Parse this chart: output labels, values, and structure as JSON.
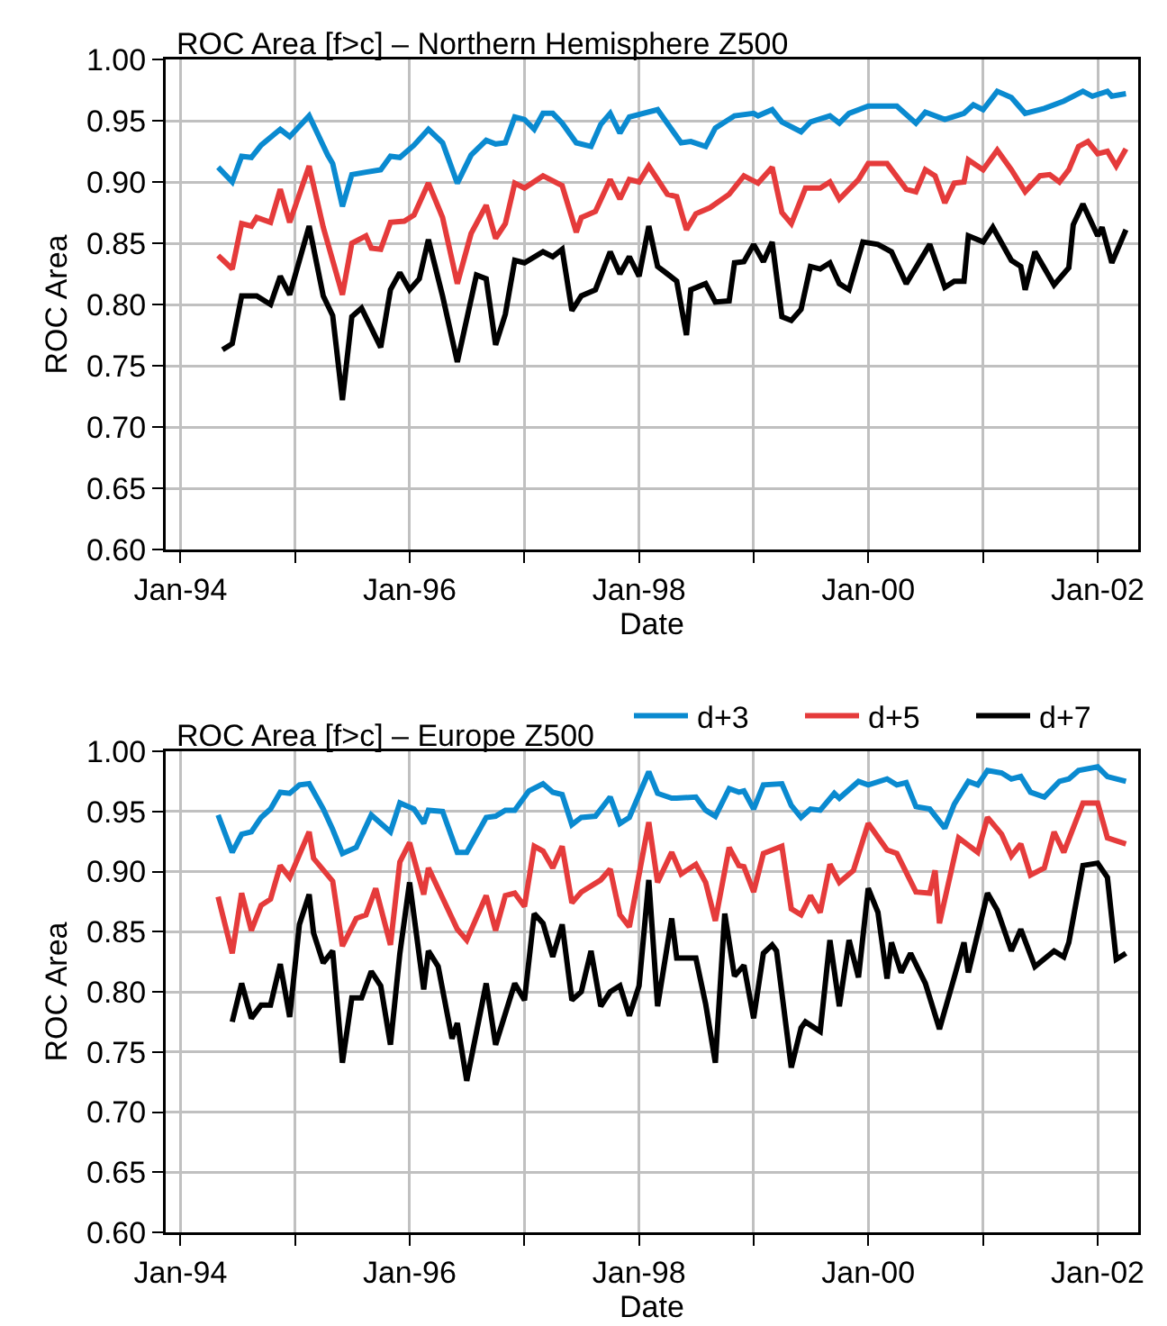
{
  "chart_data": [
    {
      "type": "line",
      "title": "ROC Area [f>c] – Northern Hemisphere Z500",
      "xlabel": "Date",
      "ylabel": "ROC Area",
      "xlim": [
        "1993-11-15",
        "2002-05-10"
      ],
      "ylim": [
        0.6,
        1.0
      ],
      "xticks": [
        {
          "value": "1994-01-01",
          "label": "Jan-94"
        },
        {
          "value": "1995-01-01",
          "label": null
        },
        {
          "value": "1996-01-01",
          "label": "Jan-96"
        },
        {
          "value": "1997-01-01",
          "label": null
        },
        {
          "value": "1998-01-01",
          "label": "Jan-98"
        },
        {
          "value": "1999-01-01",
          "label": null
        },
        {
          "value": "2000-01-01",
          "label": "Jan-00"
        },
        {
          "value": "2001-01-01",
          "label": null
        },
        {
          "value": "2002-01-01",
          "label": "Jan-02"
        }
      ],
      "yticks": [
        {
          "value": 0.6,
          "label": "0.60"
        },
        {
          "value": 0.65,
          "label": "0.65"
        },
        {
          "value": 0.7,
          "label": "0.70"
        },
        {
          "value": 0.75,
          "label": "0.75"
        },
        {
          "value": 0.8,
          "label": "0.80"
        },
        {
          "value": 0.85,
          "label": "0.85"
        },
        {
          "value": 0.9,
          "label": "0.90"
        },
        {
          "value": 0.95,
          "label": "0.95"
        },
        {
          "value": 1.0,
          "label": "1.00"
        }
      ],
      "grid": true,
      "legend": false,
      "marker": "none",
      "line_style": "solid",
      "series": [
        {
          "color": "#0a8ad0",
          "x": [
            "1994-05-01",
            "1994-06-15",
            "1994-07-15",
            "1994-08-15",
            "1994-09-15",
            "1994-11-15",
            "1994-12-15",
            "1995-02-15",
            "1995-04-15",
            "1995-05-01",
            "1995-06-01",
            "1995-07-01",
            "1995-08-15",
            "1995-10-01",
            "1995-11-01",
            "1995-12-01",
            "1996-01-15",
            "1996-03-01",
            "1996-04-15",
            "1996-06-01",
            "1996-07-15",
            "1996-09-01",
            "1996-10-01",
            "1996-11-01",
            "1996-12-01",
            "1997-01-01",
            "1997-02-01",
            "1997-03-01",
            "1997-04-01",
            "1997-05-01",
            "1997-06-15",
            "1997-08-01",
            "1997-09-01",
            "1997-10-01",
            "1997-11-01",
            "1997-12-01",
            "1998-03-01",
            "1998-05-15",
            "1998-06-15",
            "1998-08-01",
            "1998-09-01",
            "1998-11-01",
            "1999-01-01",
            "1999-01-15",
            "1999-03-01",
            "1999-04-01",
            "1999-06-01",
            "1999-07-01",
            "1999-09-01",
            "1999-10-01",
            "1999-11-01",
            "2000-01-01",
            "2000-02-15",
            "2000-04-01",
            "2000-06-01",
            "2000-07-01",
            "2000-09-01",
            "2000-11-01",
            "2000-12-01",
            "2001-01-01",
            "2001-02-15",
            "2001-04-01",
            "2001-05-15",
            "2001-07-15",
            "2001-09-15",
            "2001-11-15",
            "2001-12-15",
            "2002-02-01",
            "2002-02-15",
            "2002-04-01"
          ],
          "values": [
            0.912,
            0.9,
            0.921,
            0.92,
            0.93,
            0.943,
            0.937,
            0.954,
            0.922,
            0.915,
            0.88,
            0.906,
            0.908,
            0.91,
            0.921,
            0.92,
            0.93,
            0.943,
            0.932,
            0.899,
            0.922,
            0.934,
            0.931,
            0.932,
            0.953,
            0.951,
            0.943,
            0.956,
            0.956,
            0.948,
            0.932,
            0.929,
            0.947,
            0.956,
            0.94,
            0.953,
            0.959,
            0.932,
            0.933,
            0.929,
            0.944,
            0.954,
            0.956,
            0.954,
            0.959,
            0.949,
            0.941,
            0.949,
            0.954,
            0.948,
            0.956,
            0.962,
            0.962,
            0.962,
            0.948,
            0.957,
            0.951,
            0.956,
            0.963,
            0.959,
            0.974,
            0.969,
            0.956,
            0.96,
            0.966,
            0.974,
            0.97,
            0.974,
            0.97,
            0.972
          ]
        },
        {
          "color": "#e53b3b",
          "x": [
            "1994-05-01",
            "1994-06-15",
            "1994-07-15",
            "1994-08-15",
            "1994-09-01",
            "1994-10-15",
            "1994-11-15",
            "1994-12-15",
            "1995-02-15",
            "1995-04-01",
            "1995-06-01",
            "1995-07-01",
            "1995-08-15",
            "1995-09-01",
            "1995-10-01",
            "1995-11-01",
            "1995-12-15",
            "1996-01-15",
            "1996-03-01",
            "1996-04-15",
            "1996-06-01",
            "1996-07-15",
            "1996-09-01",
            "1996-10-01",
            "1996-11-01",
            "1996-12-01",
            "1997-01-01",
            "1997-03-01",
            "1997-05-01",
            "1997-06-15",
            "1997-07-01",
            "1997-08-15",
            "1997-10-01",
            "1997-11-01",
            "1997-12-01",
            "1998-01-01",
            "1998-02-01",
            "1998-04-01",
            "1998-05-01",
            "1998-06-01",
            "1998-07-01",
            "1998-08-15",
            "1998-10-15",
            "1998-12-01",
            "1999-01-15",
            "1999-03-01",
            "1999-04-01",
            "1999-05-01",
            "1999-06-15",
            "1999-08-01",
            "1999-09-01",
            "1999-10-01",
            "1999-12-01",
            "2000-01-01",
            "2000-03-01",
            "2000-05-01",
            "2000-06-01",
            "2000-07-01",
            "2000-08-01",
            "2000-09-01",
            "2000-10-01",
            "2000-11-01",
            "2000-11-15",
            "2001-01-01",
            "2001-02-15",
            "2001-04-01",
            "2001-05-15",
            "2001-07-01",
            "2001-08-01",
            "2001-09-01",
            "2001-10-01",
            "2001-11-01",
            "2001-12-01",
            "2002-01-01",
            "2002-02-01",
            "2002-03-01",
            "2002-04-01"
          ],
          "values": [
            0.84,
            0.829,
            0.866,
            0.864,
            0.871,
            0.867,
            0.894,
            0.867,
            0.913,
            0.863,
            0.808,
            0.85,
            0.856,
            0.846,
            0.845,
            0.867,
            0.868,
            0.873,
            0.899,
            0.871,
            0.817,
            0.858,
            0.881,
            0.854,
            0.866,
            0.899,
            0.895,
            0.905,
            0.897,
            0.859,
            0.871,
            0.876,
            0.902,
            0.886,
            0.902,
            0.9,
            0.913,
            0.89,
            0.888,
            0.861,
            0.874,
            0.879,
            0.89,
            0.905,
            0.899,
            0.912,
            0.875,
            0.866,
            0.895,
            0.895,
            0.9,
            0.886,
            0.902,
            0.915,
            0.915,
            0.894,
            0.892,
            0.91,
            0.905,
            0.883,
            0.899,
            0.9,
            0.918,
            0.91,
            0.926,
            0.91,
            0.892,
            0.905,
            0.906,
            0.9,
            0.91,
            0.929,
            0.933,
            0.923,
            0.925,
            0.913,
            0.927
          ]
        },
        {
          "color": "#000000",
          "x": [
            "1994-05-15",
            "1994-06-15",
            "1994-07-15",
            "1994-09-01",
            "1994-10-15",
            "1994-11-15",
            "1994-12-15",
            "1995-02-15",
            "1995-04-01",
            "1995-05-01",
            "1995-06-01",
            "1995-07-01",
            "1995-08-01",
            "1995-10-01",
            "1995-11-01",
            "1995-12-01",
            "1996-01-01",
            "1996-02-01",
            "1996-03-01",
            "1996-04-15",
            "1996-06-01",
            "1996-08-01",
            "1996-09-01",
            "1996-10-01",
            "1996-11-01",
            "1996-12-01",
            "1997-01-01",
            "1997-03-01",
            "1997-04-01",
            "1997-05-01",
            "1997-06-01",
            "1997-07-01",
            "1997-08-15",
            "1997-10-01",
            "1997-11-01",
            "1997-12-01",
            "1998-01-01",
            "1998-02-01",
            "1998-03-01",
            "1998-04-01",
            "1998-05-01",
            "1998-06-01",
            "1998-06-15",
            "1998-08-01",
            "1998-09-01",
            "1998-10-15",
            "1998-11-01",
            "1998-12-01",
            "1999-01-01",
            "1999-02-01",
            "1999-03-01",
            "1999-04-01",
            "1999-05-01",
            "1999-06-01",
            "1999-07-01",
            "1999-08-01",
            "1999-09-01",
            "1999-10-01",
            "1999-11-01",
            "1999-12-15",
            "2000-02-01",
            "2000-03-15",
            "2000-05-01",
            "2000-07-15",
            "2000-09-01",
            "2000-10-01",
            "2000-11-01",
            "2000-11-15",
            "2001-01-01",
            "2001-02-01",
            "2001-04-01",
            "2001-05-01",
            "2001-05-15",
            "2001-06-15",
            "2001-08-15",
            "2001-10-01",
            "2001-10-15",
            "2001-11-15",
            "2002-01-01",
            "2002-01-15",
            "2002-02-15",
            "2002-04-01"
          ],
          "values": [
            0.763,
            0.768,
            0.807,
            0.807,
            0.8,
            0.823,
            0.808,
            0.864,
            0.807,
            0.791,
            0.722,
            0.79,
            0.797,
            0.765,
            0.812,
            0.826,
            0.812,
            0.821,
            0.853,
            0.807,
            0.753,
            0.824,
            0.821,
            0.767,
            0.792,
            0.836,
            0.834,
            0.843,
            0.839,
            0.845,
            0.795,
            0.807,
            0.812,
            0.843,
            0.825,
            0.839,
            0.823,
            0.864,
            0.831,
            0.825,
            0.819,
            0.775,
            0.812,
            0.817,
            0.802,
            0.803,
            0.834,
            0.835,
            0.849,
            0.835,
            0.851,
            0.79,
            0.787,
            0.796,
            0.831,
            0.829,
            0.834,
            0.817,
            0.812,
            0.851,
            0.849,
            0.843,
            0.817,
            0.849,
            0.814,
            0.819,
            0.819,
            0.856,
            0.851,
            0.863,
            0.836,
            0.831,
            0.812,
            0.843,
            0.816,
            0.83,
            0.865,
            0.882,
            0.856,
            0.863,
            0.834,
            0.861
          ]
        }
      ]
    },
    {
      "type": "line",
      "title": "ROC Area [f>c] – Europe Z500",
      "xlabel": "Date",
      "ylabel": "ROC Area",
      "xlim": [
        "1993-11-15",
        "2002-05-10"
      ],
      "ylim": [
        0.6,
        1.0
      ],
      "xticks": [
        {
          "value": "1994-01-01",
          "label": "Jan-94"
        },
        {
          "value": "1995-01-01",
          "label": null
        },
        {
          "value": "1996-01-01",
          "label": "Jan-96"
        },
        {
          "value": "1997-01-01",
          "label": null
        },
        {
          "value": "1998-01-01",
          "label": "Jan-98"
        },
        {
          "value": "1999-01-01",
          "label": null
        },
        {
          "value": "2000-01-01",
          "label": "Jan-00"
        },
        {
          "value": "2001-01-01",
          "label": null
        },
        {
          "value": "2002-01-01",
          "label": "Jan-02"
        }
      ],
      "yticks": [
        {
          "value": 0.6,
          "label": "0.60"
        },
        {
          "value": 0.65,
          "label": "0.65"
        },
        {
          "value": 0.7,
          "label": "0.70"
        },
        {
          "value": 0.75,
          "label": "0.75"
        },
        {
          "value": 0.8,
          "label": "0.80"
        },
        {
          "value": 0.85,
          "label": "0.85"
        },
        {
          "value": 0.9,
          "label": "0.90"
        },
        {
          "value": 0.95,
          "label": "0.95"
        },
        {
          "value": 1.0,
          "label": "1.00"
        }
      ],
      "grid": true,
      "legend": "top right",
      "marker": "none",
      "line_style": "solid",
      "series": [
        {
          "name": "d+3",
          "color": "#0a8ad0",
          "x": [
            "1994-05-01",
            "1994-06-15",
            "1994-07-15",
            "1994-08-15",
            "1994-09-15",
            "1994-10-15",
            "1994-11-15",
            "1994-12-15",
            "1995-01-15",
            "1995-02-15",
            "1995-04-01",
            "1995-05-01",
            "1995-06-01",
            "1995-07-15",
            "1995-09-01",
            "1995-11-01",
            "1995-12-01",
            "1996-01-15",
            "1996-02-15",
            "1996-03-01",
            "1996-04-15",
            "1996-06-01",
            "1996-07-01",
            "1996-09-01",
            "1996-10-01",
            "1996-11-01",
            "1996-12-01",
            "1997-01-15",
            "1997-03-01",
            "1997-04-01",
            "1997-05-01",
            "1997-06-01",
            "1997-07-01",
            "1997-08-15",
            "1997-10-01",
            "1997-11-01",
            "1997-12-01",
            "1998-02-01",
            "1998-03-01",
            "1998-04-15",
            "1998-05-01",
            "1998-07-01",
            "1998-08-01",
            "1998-09-01",
            "1998-10-15",
            "1998-11-15",
            "1998-12-01",
            "1999-01-01",
            "1999-02-01",
            "1999-04-01",
            "1999-05-01",
            "1999-06-01",
            "1999-07-01",
            "1999-08-01",
            "1999-09-15",
            "1999-10-01",
            "1999-12-01",
            "2000-01-01",
            "2000-03-01",
            "2000-04-01",
            "2000-05-01",
            "2000-06-01",
            "2000-07-15",
            "2000-09-01",
            "2000-10-01",
            "2000-11-15",
            "2000-12-15",
            "2001-01-15",
            "2001-03-01",
            "2001-04-01",
            "2001-05-01",
            "2001-06-01",
            "2001-07-15",
            "2001-09-01",
            "2001-10-01",
            "2001-11-01",
            "2002-01-01",
            "2002-02-01",
            "2002-04-01"
          ],
          "values": [
            0.947,
            0.916,
            0.931,
            0.933,
            0.945,
            0.952,
            0.966,
            0.965,
            0.972,
            0.973,
            0.952,
            0.935,
            0.915,
            0.92,
            0.947,
            0.933,
            0.957,
            0.952,
            0.94,
            0.951,
            0.95,
            0.916,
            0.916,
            0.945,
            0.946,
            0.951,
            0.951,
            0.967,
            0.973,
            0.966,
            0.964,
            0.939,
            0.945,
            0.946,
            0.962,
            0.94,
            0.945,
            0.983,
            0.965,
            0.961,
            0.961,
            0.962,
            0.951,
            0.946,
            0.969,
            0.966,
            0.967,
            0.952,
            0.972,
            0.973,
            0.955,
            0.945,
            0.952,
            0.951,
            0.965,
            0.961,
            0.975,
            0.972,
            0.977,
            0.972,
            0.974,
            0.954,
            0.952,
            0.936,
            0.956,
            0.975,
            0.972,
            0.984,
            0.982,
            0.977,
            0.979,
            0.966,
            0.962,
            0.975,
            0.977,
            0.984,
            0.987,
            0.979,
            0.975
          ]
        },
        {
          "name": "d+5",
          "color": "#e53b3b",
          "x": [
            "1994-05-01",
            "1994-06-15",
            "1994-07-15",
            "1994-08-15",
            "1994-09-15",
            "1994-10-15",
            "1994-11-15",
            "1994-12-15",
            "1995-02-15",
            "1995-03-01",
            "1995-05-01",
            "1995-06-01",
            "1995-07-15",
            "1995-08-15",
            "1995-09-15",
            "1995-11-01",
            "1995-12-01",
            "1996-01-01",
            "1996-02-15",
            "1996-03-01",
            "1996-06-01",
            "1996-07-01",
            "1996-09-01",
            "1996-10-01",
            "1996-11-01",
            "1996-12-01",
            "1997-01-01",
            "1997-02-01",
            "1997-03-01",
            "1997-04-01",
            "1997-05-01",
            "1997-06-01",
            "1997-07-01",
            "1997-09-01",
            "1997-10-01",
            "1997-11-01",
            "1997-12-01",
            "1998-02-01",
            "1998-03-01",
            "1998-04-15",
            "1998-05-15",
            "1998-07-01",
            "1998-08-01",
            "1998-09-01",
            "1998-10-15",
            "1998-11-15",
            "1998-12-01",
            "1999-01-01",
            "1999-02-01",
            "1999-04-01",
            "1999-05-01",
            "1999-06-01",
            "1999-07-01",
            "1999-08-01",
            "1999-09-01",
            "1999-10-01",
            "1999-11-15",
            "2000-01-01",
            "2000-03-01",
            "2000-04-01",
            "2000-06-01",
            "2000-07-15",
            "2000-08-01",
            "2000-08-15",
            "2000-10-15",
            "2000-12-15",
            "2001-01-15",
            "2001-03-01",
            "2001-04-01",
            "2001-05-01",
            "2001-06-01",
            "2001-07-15",
            "2001-08-15",
            "2001-09-15",
            "2001-11-15",
            "2002-01-01",
            "2002-02-01",
            "2002-04-01"
          ],
          "values": [
            0.879,
            0.832,
            0.882,
            0.851,
            0.872,
            0.877,
            0.905,
            0.895,
            0.933,
            0.911,
            0.892,
            0.838,
            0.861,
            0.864,
            0.886,
            0.839,
            0.908,
            0.924,
            0.881,
            0.903,
            0.852,
            0.843,
            0.88,
            0.851,
            0.88,
            0.882,
            0.871,
            0.921,
            0.917,
            0.903,
            0.921,
            0.874,
            0.883,
            0.893,
            0.902,
            0.864,
            0.854,
            0.941,
            0.891,
            0.916,
            0.898,
            0.906,
            0.891,
            0.859,
            0.92,
            0.905,
            0.904,
            0.883,
            0.915,
            0.921,
            0.869,
            0.864,
            0.88,
            0.866,
            0.906,
            0.891,
            0.901,
            0.94,
            0.918,
            0.915,
            0.883,
            0.882,
            0.901,
            0.857,
            0.928,
            0.916,
            0.945,
            0.931,
            0.913,
            0.923,
            0.897,
            0.903,
            0.933,
            0.916,
            0.957,
            0.957,
            0.928,
            0.923
          ]
        },
        {
          "name": "d+7",
          "color": "#000000",
          "x": [
            "1994-06-15",
            "1994-07-15",
            "1994-08-15",
            "1994-09-15",
            "1994-10-15",
            "1994-11-15",
            "1994-12-15",
            "1995-01-15",
            "1995-02-15",
            "1995-03-01",
            "1995-04-01",
            "1995-05-01",
            "1995-06-01",
            "1995-07-01",
            "1995-08-01",
            "1995-09-01",
            "1995-10-01",
            "1995-11-01",
            "1995-12-01",
            "1996-01-01",
            "1996-02-15",
            "1996-03-01",
            "1996-04-01",
            "1996-05-15",
            "1996-06-01",
            "1996-07-01",
            "1996-09-01",
            "1996-10-01",
            "1996-12-01",
            "1997-01-01",
            "1997-02-01",
            "1997-03-01",
            "1997-04-01",
            "1997-05-01",
            "1997-06-01",
            "1997-07-01",
            "1997-08-01",
            "1997-09-01",
            "1997-10-01",
            "1997-11-01",
            "1997-12-01",
            "1998-01-01",
            "1998-02-01",
            "1998-03-01",
            "1998-04-15",
            "1998-05-01",
            "1998-07-01",
            "1998-08-01",
            "1998-09-01",
            "1998-10-01",
            "1998-11-01",
            "1998-12-01",
            "1999-01-01",
            "1999-02-01",
            "1999-03-01",
            "1999-03-15",
            "1999-05-01",
            "1999-06-01",
            "1999-06-15",
            "1999-08-01",
            "1999-09-01",
            "1999-10-01",
            "1999-11-01",
            "1999-12-01",
            "2000-01-01",
            "2000-02-01",
            "2000-03-01",
            "2000-03-15",
            "2000-04-15",
            "2000-05-15",
            "2000-07-01",
            "2000-08-15",
            "2000-10-01",
            "2000-11-01",
            "2000-11-15",
            "2001-01-15",
            "2001-02-15",
            "2001-04-01",
            "2001-05-01",
            "2001-06-15",
            "2001-08-15",
            "2001-09-15",
            "2001-10-01",
            "2001-11-15",
            "2002-01-01",
            "2002-02-01",
            "2002-03-01",
            "2002-04-01"
          ],
          "values": [
            0.775,
            0.807,
            0.778,
            0.789,
            0.789,
            0.823,
            0.779,
            0.856,
            0.881,
            0.849,
            0.824,
            0.834,
            0.741,
            0.795,
            0.795,
            0.817,
            0.805,
            0.756,
            0.832,
            0.891,
            0.802,
            0.834,
            0.821,
            0.761,
            0.774,
            0.726,
            0.807,
            0.756,
            0.807,
            0.793,
            0.865,
            0.857,
            0.829,
            0.856,
            0.793,
            0.8,
            0.834,
            0.788,
            0.8,
            0.805,
            0.78,
            0.805,
            0.893,
            0.788,
            0.861,
            0.828,
            0.828,
            0.79,
            0.741,
            0.865,
            0.813,
            0.822,
            0.778,
            0.832,
            0.839,
            0.834,
            0.737,
            0.77,
            0.775,
            0.767,
            0.843,
            0.788,
            0.843,
            0.812,
            0.886,
            0.866,
            0.811,
            0.841,
            0.816,
            0.832,
            0.807,
            0.769,
            0.812,
            0.841,
            0.816,
            0.882,
            0.868,
            0.834,
            0.852,
            0.821,
            0.834,
            0.829,
            0.841,
            0.905,
            0.907,
            0.895,
            0.827,
            0.832
          ]
        }
      ]
    }
  ]
}
